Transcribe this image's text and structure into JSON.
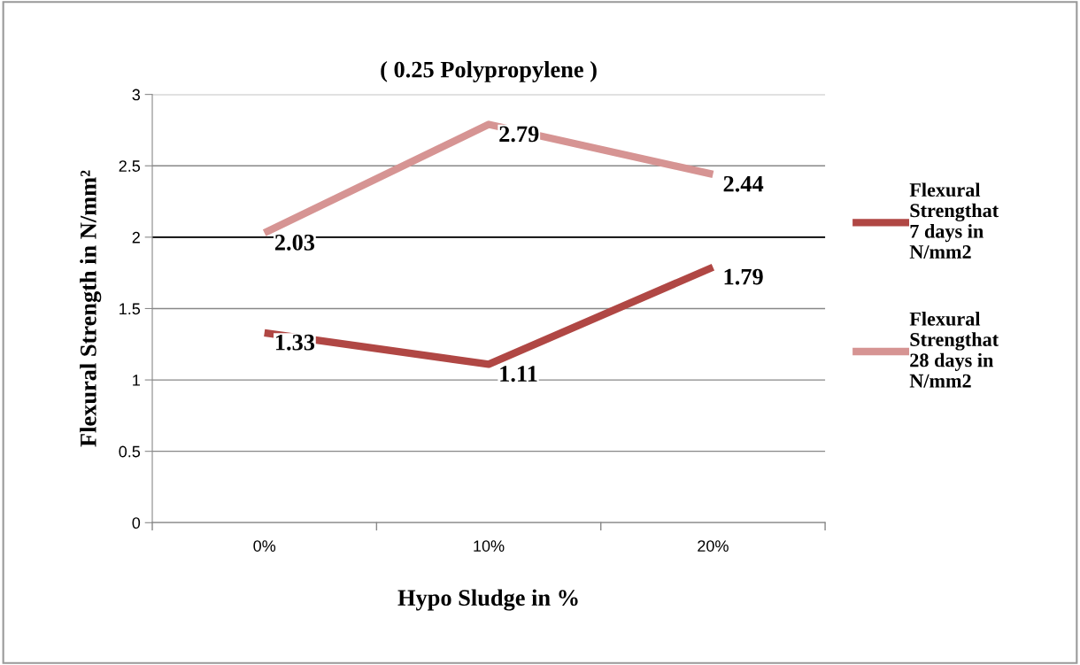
{
  "chart_data": {
    "type": "line",
    "title": "( 0.25 Polypropylene )",
    "xlabel": "Hypo Sludge in %",
    "ylabel": "Flexural Strength in N/mm²",
    "categories": [
      "0%",
      "10%",
      "20%"
    ],
    "series": [
      {
        "name": "Flexural\nStrengthat\n7 days in\nN/mm2",
        "color": "#b04744",
        "values": [
          1.33,
          1.11,
          1.79
        ]
      },
      {
        "name": "Flexural\nStrengthat\n28 days in\nN/mm2",
        "color": "#d69493",
        "values": [
          2.03,
          2.79,
          2.44
        ]
      }
    ],
    "ylim": [
      0,
      3
    ],
    "yticks": [
      0,
      0.5,
      1,
      1.5,
      2,
      2.5,
      3
    ],
    "ref_lines": [
      {
        "axis": "y",
        "value": 2,
        "color": "#000000"
      }
    ],
    "grid": "y",
    "legend": "right",
    "data_labels": true,
    "line_style": "solid"
  }
}
